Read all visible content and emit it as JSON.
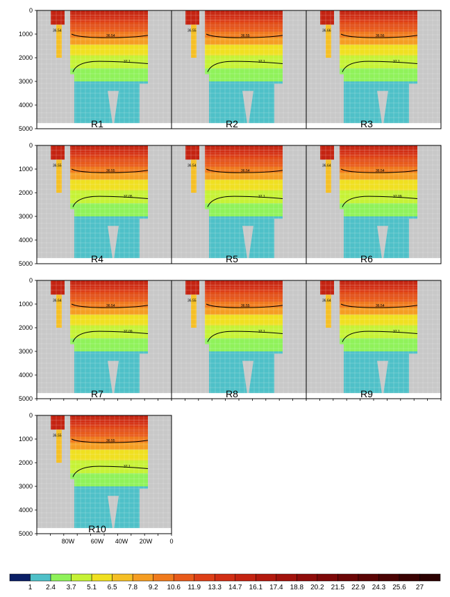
{
  "chart_data": {
    "type": "heatmap",
    "x_ticks": [
      "80W",
      "60W",
      "40W",
      "20W",
      "0"
    ],
    "y_ticks": [
      0,
      1000,
      2000,
      3000,
      4000,
      5000
    ],
    "panels": [
      {
        "label": "R1",
        "c_upper": "36.54",
        "c_mid": "36.54",
        "c_lower": "37.1"
      },
      {
        "label": "R2",
        "c_upper": "36.55",
        "c_mid": "36.55",
        "c_lower": "37.1"
      },
      {
        "label": "R3",
        "c_upper": "36.66",
        "c_mid": "36.56",
        "c_lower": "37.1"
      },
      {
        "label": "R4",
        "c_upper": "36.55",
        "c_mid": "36.55",
        "c_lower": "37.05"
      },
      {
        "label": "R5",
        "c_upper": "36.54",
        "c_mid": "36.54",
        "c_lower": "37.1"
      },
      {
        "label": "R6",
        "c_upper": "36.64",
        "c_mid": "36.54",
        "c_lower": "37.09"
      },
      {
        "label": "R7",
        "c_upper": "36.64",
        "c_mid": "36.54",
        "c_lower": "37.09"
      },
      {
        "label": "R8",
        "c_upper": "36.55",
        "c_mid": "36.55",
        "c_lower": "37.1"
      },
      {
        "label": "R9",
        "c_upper": "36.64",
        "c_mid": "36.54",
        "c_lower": "37.1"
      },
      {
        "label": "R10",
        "c_upper": "36.55",
        "c_mid": "36.55",
        "c_lower": "37.1"
      }
    ],
    "colorbar": {
      "labels": [
        "1",
        "2.4",
        "3.7",
        "5.1",
        "6.5",
        "7.8",
        "9.2",
        "10.6",
        "11.9",
        "13.3",
        "14.7",
        "16.1",
        "17.4",
        "18.8",
        "20.2",
        "21.5",
        "22.9",
        "24.3",
        "25.6",
        "27"
      ],
      "colors": [
        "#0b1f66",
        "#4fc0c8",
        "#8ff25a",
        "#c6f235",
        "#f0e020",
        "#f5bf25",
        "#f59d22",
        "#f07a1c",
        "#e85a1a",
        "#dd3f17",
        "#d12e14",
        "#c42311",
        "#b3190e",
        "#a2120c",
        "#8f0c0a",
        "#7d0808",
        "#6b0606",
        "#5a0404",
        "#4a0303",
        "#3a0202",
        "#2b0101"
      ]
    },
    "layers": [
      {
        "depth_top": 0,
        "depth_bottom": 100,
        "color": "#c42311"
      },
      {
        "depth_top": 100,
        "depth_bottom": 200,
        "color": "#c9280f"
      },
      {
        "depth_top": 200,
        "depth_bottom": 300,
        "color": "#d12e14"
      },
      {
        "depth_top": 300,
        "depth_bottom": 400,
        "color": "#d63416"
      },
      {
        "depth_top": 400,
        "depth_bottom": 500,
        "color": "#dd3f17"
      },
      {
        "depth_top": 500,
        "depth_bottom": 700,
        "color": "#e24e18"
      },
      {
        "depth_top": 700,
        "depth_bottom": 900,
        "color": "#e85a1a"
      },
      {
        "depth_top": 900,
        "depth_bottom": 1150,
        "color": "#f07a1c"
      },
      {
        "depth_top": 1150,
        "depth_bottom": 1450,
        "color": "#f59d22"
      },
      {
        "depth_top": 1450,
        "depth_bottom": 1900,
        "color": "#f0e020"
      },
      {
        "depth_top": 1900,
        "depth_bottom": 2450,
        "color": "#c6f235"
      },
      {
        "depth_top": 2450,
        "depth_bottom": 3000,
        "color": "#8ff25a"
      },
      {
        "depth_top": 3000,
        "depth_bottom": 5000,
        "color": "#4fc0c8"
      }
    ],
    "land_color": "#c8c8c8",
    "missing_color": "#ffffff",
    "grid": true
  }
}
